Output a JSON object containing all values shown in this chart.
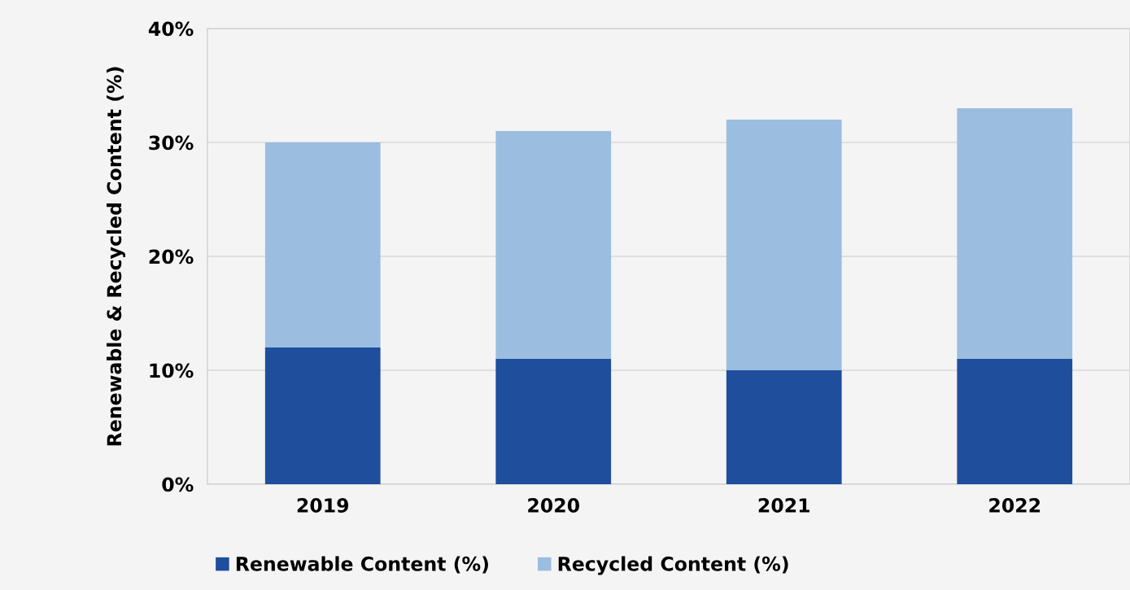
{
  "chart_data": {
    "type": "bar",
    "stacked": true,
    "ylabel": "Renewable & Recycled Content (%)",
    "categories": [
      "2019",
      "2020",
      "2021",
      "2022"
    ],
    "series": [
      {
        "name": "Renewable Content (%)",
        "color": "#1f4e9c",
        "values": [
          12,
          11,
          10,
          11
        ]
      },
      {
        "name": "Recycled Content (%)",
        "color": "#9bbde0",
        "values": [
          18,
          20,
          22,
          22
        ]
      }
    ],
    "ylim": [
      0,
      40
    ],
    "yticks": [
      {
        "value": 0,
        "label": "0%"
      },
      {
        "value": 10,
        "label": "10%"
      },
      {
        "value": 20,
        "label": "20%"
      },
      {
        "value": 30,
        "label": "30%"
      },
      {
        "value": 40,
        "label": "40%"
      }
    ],
    "grid": "y",
    "legend": "bottom"
  }
}
